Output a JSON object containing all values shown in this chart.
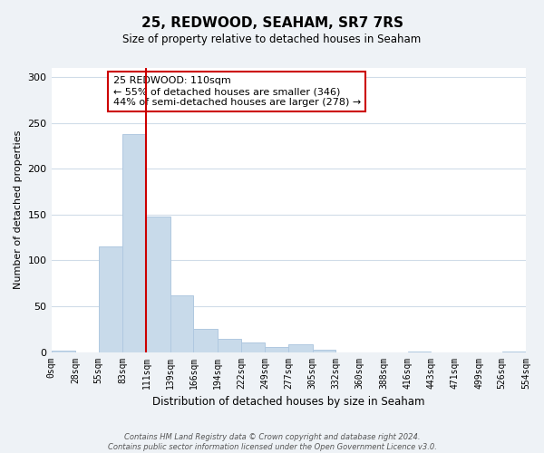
{
  "title": "25, REDWOOD, SEAHAM, SR7 7RS",
  "subtitle": "Size of property relative to detached houses in Seaham",
  "xlabel": "Distribution of detached houses by size in Seaham",
  "ylabel": "Number of detached properties",
  "bar_color": "#c8daea",
  "bar_edge_color": "#b0c8e0",
  "bin_edges": [
    0,
    28,
    55,
    83,
    111,
    139,
    166,
    194,
    222,
    249,
    277,
    305,
    332,
    360,
    388,
    416,
    443,
    471,
    499,
    526,
    554
  ],
  "bar_heights": [
    2,
    0,
    115,
    238,
    148,
    62,
    25,
    14,
    10,
    5,
    8,
    3,
    0,
    0,
    0,
    1,
    0,
    0,
    0,
    1
  ],
  "tick_labels": [
    "0sqm",
    "28sqm",
    "55sqm",
    "83sqm",
    "111sqm",
    "139sqm",
    "166sqm",
    "194sqm",
    "222sqm",
    "249sqm",
    "277sqm",
    "305sqm",
    "332sqm",
    "360sqm",
    "388sqm",
    "416sqm",
    "443sqm",
    "471sqm",
    "499sqm",
    "526sqm",
    "554sqm"
  ],
  "vline_x": 111,
  "vline_color": "#cc0000",
  "annotation_text_line1": "25 REDWOOD: 110sqm",
  "annotation_text_line2": "← 55% of detached houses are smaller (346)",
  "annotation_text_line3": "44% of semi-detached houses are larger (278) →",
  "ylim": [
    0,
    310
  ],
  "yticks": [
    0,
    50,
    100,
    150,
    200,
    250,
    300
  ],
  "footer_text": "Contains HM Land Registry data © Crown copyright and database right 2024.\nContains public sector information licensed under the Open Government Licence v3.0.",
  "background_color": "#eef2f6",
  "plot_background_color": "#ffffff",
  "grid_color": "#d0dce8"
}
